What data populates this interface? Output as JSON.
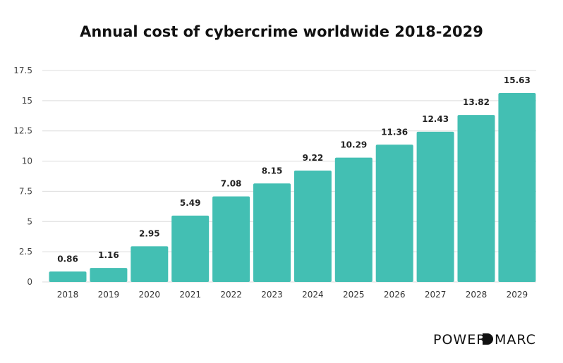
{
  "chart_data": {
    "type": "bar",
    "title": "Annual cost of cybercrime worldwide 2018-2029",
    "xlabel": "",
    "ylabel": "",
    "categories": [
      "2018",
      "2019",
      "2020",
      "2021",
      "2022",
      "2023",
      "2024",
      "2025",
      "2026",
      "2027",
      "2028",
      "2029"
    ],
    "values": [
      0.86,
      1.16,
      2.95,
      5.49,
      7.08,
      8.15,
      9.22,
      10.29,
      11.36,
      12.43,
      13.82,
      15.63
    ],
    "value_labels": [
      "0.86",
      "1.16",
      "2.95",
      "5.49",
      "7.08",
      "8.15",
      "9.22",
      "10.29",
      "11.36",
      "12.43",
      "13.82",
      "15.63"
    ],
    "ylim": [
      0,
      17.5
    ],
    "yticks": [
      0,
      2.5,
      5,
      7.5,
      10,
      12.5,
      15,
      17.5
    ],
    "ytick_labels": [
      "0",
      "2.5",
      "5",
      "7.5",
      "10",
      "12.5",
      "15",
      "17.5"
    ],
    "grid": true,
    "bar_color": "#43bfb3"
  },
  "brand": {
    "text_left": "POWER",
    "text_right": "MARC",
    "color": "#111111"
  }
}
